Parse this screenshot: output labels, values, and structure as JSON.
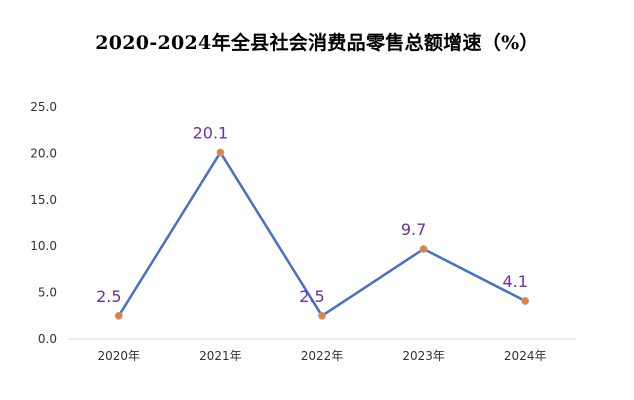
{
  "chart_data": {
    "type": "line",
    "title": "2020-2024年全县社会消费品零售总额增速（%）",
    "categories": [
      "2020年",
      "2021年",
      "2022年",
      "2023年",
      "2024年"
    ],
    "series": [
      {
        "values": [
          2.5,
          20.1,
          2.5,
          9.7,
          4.1
        ]
      }
    ],
    "data_labels": [
      "2.5",
      "20.1",
      "2.5",
      "9.7",
      "4.1"
    ],
    "y_ticks": [
      "0.0",
      "5.0",
      "10.0",
      "15.0",
      "20.0",
      "25.0"
    ],
    "ylim": [
      0,
      25
    ],
    "xlabel": "",
    "ylabel": "",
    "grid": false,
    "legend": "none",
    "colors": {
      "line": "#4472c4",
      "marker_fill": "#ed7d31",
      "marker_stroke": "#a5a5a5",
      "data_label": "#7030a0",
      "axis": "#d9d9d9"
    }
  }
}
